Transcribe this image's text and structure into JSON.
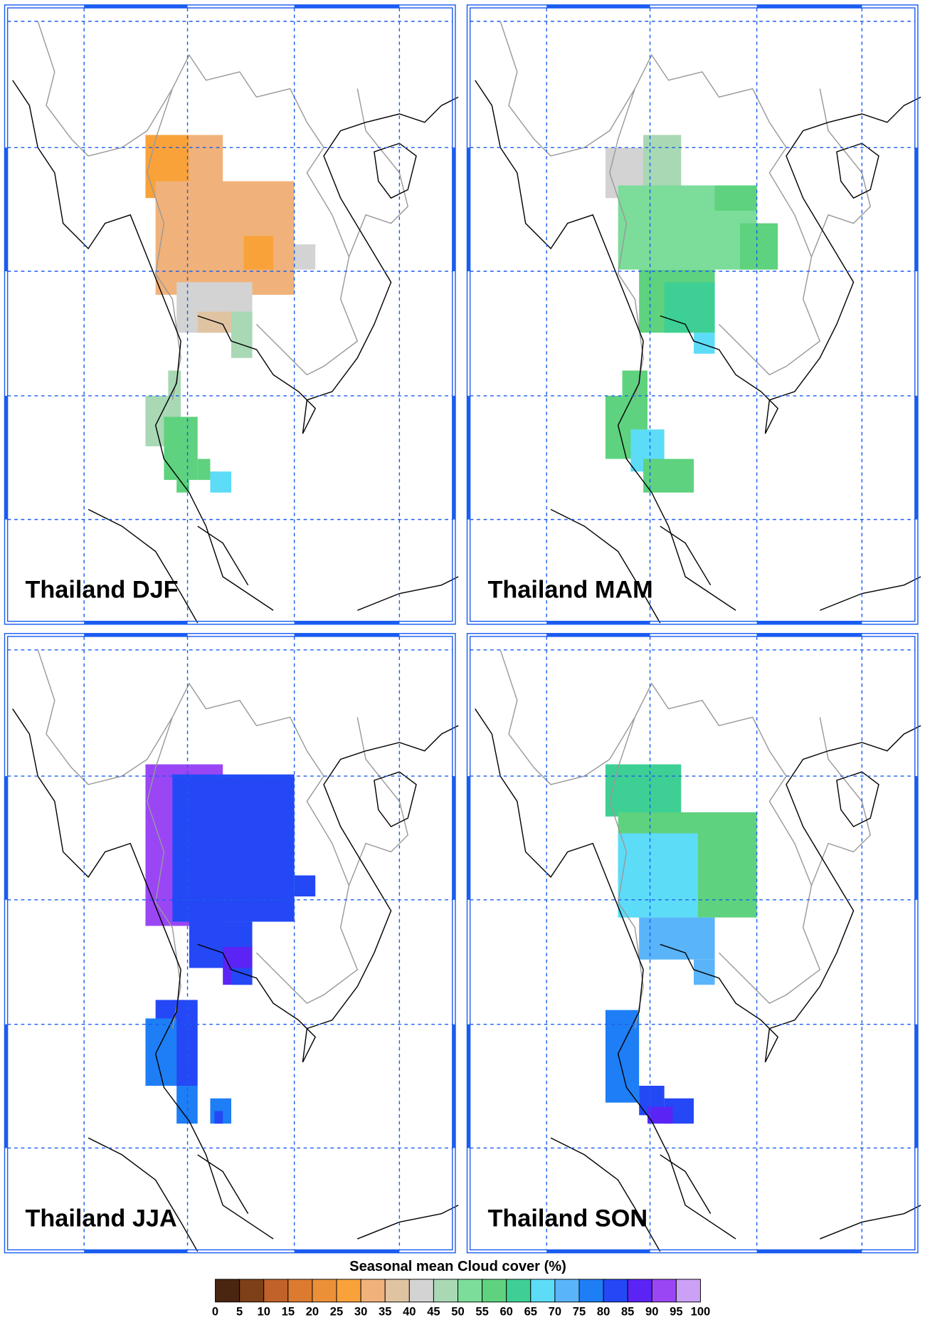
{
  "panels": [
    {
      "title": "Thailand DJF"
    },
    {
      "title": "Thailand MAM"
    },
    {
      "title": "Thailand JJA"
    },
    {
      "title": "Thailand SON"
    }
  ],
  "colorbar": {
    "title": "Seasonal mean Cloud cover (%)",
    "ticks": [
      0,
      5,
      10,
      15,
      20,
      25,
      30,
      35,
      40,
      45,
      50,
      55,
      60,
      65,
      70,
      75,
      80,
      85,
      90,
      95,
      100
    ],
    "colors": [
      "#4a2510",
      "#7d4017",
      "#c0622a",
      "#dc7a30",
      "#ec9038",
      "#f9a23a",
      "#f0b27a",
      "#e0c4a2",
      "#d3d3d3",
      "#a8d8b4",
      "#7cdc9a",
      "#5ed27e",
      "#3ecf94",
      "#5ddcf8",
      "#5ab4fa",
      "#1e7ef5",
      "#2448f5",
      "#5b24f5",
      "#9a46f5",
      "#caa1f5"
    ]
  }
}
